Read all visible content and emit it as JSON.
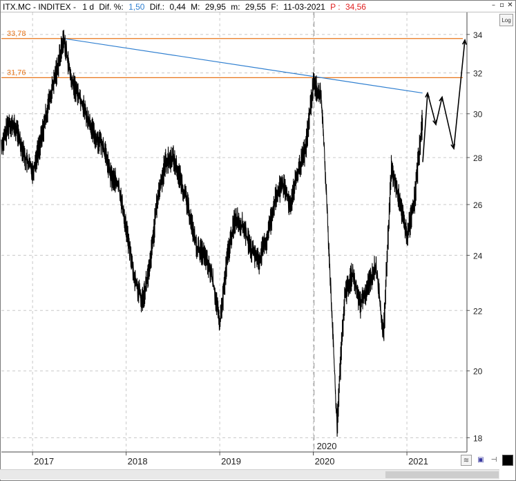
{
  "header": {
    "symbol": "ITX.MC - INDITEX -",
    "interval": "1 d",
    "dif_pct_label": "Dif. %:",
    "dif_pct_value": "1,50",
    "dif_label": "Dif.:",
    "dif_value": "0,44",
    "max_label": "M:",
    "max_value": "29,95",
    "min_label": "m:",
    "min_value": "29,55",
    "date_label": "F:",
    "date_value": "11-03-2021",
    "price_label": "P :",
    "price_value": "34,56"
  },
  "controls": {
    "log_label": "Log",
    "minimize_icon": "minimize-icon",
    "restore_icon": "restore-icon",
    "close_icon": "close-icon"
  },
  "colors": {
    "price_line": "#000000",
    "horizontal_levels": "#e8751a",
    "trend_line": "#2f7fd0",
    "grid": "#c8c8c8",
    "dif_value": "#2f7fd0",
    "price_value": "#e02020"
  },
  "chart_data": {
    "type": "line",
    "scale": "log",
    "grid": true,
    "ylim": [
      17.6,
      35.2
    ],
    "y_ticks": [
      18,
      20,
      22,
      24,
      26,
      28,
      30,
      32,
      34
    ],
    "x_ticks": [
      "2017",
      "2018",
      "2019",
      "2020",
      "2020",
      "2021"
    ],
    "x_period_label": "2020",
    "horizontal_levels": [
      {
        "value": 33.78,
        "label": "33,78"
      },
      {
        "value": 31.76,
        "label": "31,76"
      }
    ],
    "trendline": {
      "from": [
        "2017-05",
        33.78
      ],
      "to": [
        "2021-03",
        31.0
      ]
    },
    "series": [
      {
        "points": [
          [
            "2016-09",
            28.5
          ],
          [
            "2016-10",
            29.6
          ],
          [
            "2016-11",
            29.2
          ],
          [
            "2016-12",
            28.0
          ],
          [
            "2017-01",
            27.4
          ],
          [
            "2017-02",
            28.7
          ],
          [
            "2017-03",
            30.4
          ],
          [
            "2017-04",
            32.0
          ],
          [
            "2017-05",
            33.78
          ],
          [
            "2017-06",
            31.5
          ],
          [
            "2017-07",
            30.9
          ],
          [
            "2017-08",
            29.8
          ],
          [
            "2017-09",
            28.9
          ],
          [
            "2017-10",
            28.6
          ],
          [
            "2017-11",
            27.2
          ],
          [
            "2017-12",
            26.8
          ],
          [
            "2018-01",
            25.0
          ],
          [
            "2018-02",
            23.2
          ],
          [
            "2018-03",
            22.3
          ],
          [
            "2018-04",
            23.5
          ],
          [
            "2018-05",
            26.2
          ],
          [
            "2018-06",
            27.8
          ],
          [
            "2018-07",
            28.0
          ],
          [
            "2018-08",
            27.0
          ],
          [
            "2018-09",
            25.8
          ],
          [
            "2018-10",
            24.3
          ],
          [
            "2018-11",
            24.0
          ],
          [
            "2018-12",
            23.2
          ],
          [
            "2019-01",
            21.5
          ],
          [
            "2019-02",
            24.0
          ],
          [
            "2019-03",
            25.5
          ],
          [
            "2019-04",
            25.1
          ],
          [
            "2019-05",
            24.2
          ],
          [
            "2019-06",
            23.8
          ],
          [
            "2019-07",
            24.6
          ],
          [
            "2019-08",
            26.1
          ],
          [
            "2019-09",
            26.9
          ],
          [
            "2019-10",
            26.0
          ],
          [
            "2019-11",
            27.3
          ],
          [
            "2019-12",
            28.4
          ],
          [
            "2020-01",
            31.5
          ],
          [
            "2020-02",
            30.8
          ],
          [
            "2020-03",
            24.0
          ],
          [
            "2020-04",
            18.3
          ],
          [
            "2020-05",
            22.5
          ],
          [
            "2020-06",
            23.3
          ],
          [
            "2020-07",
            22.2
          ],
          [
            "2020-08",
            22.9
          ],
          [
            "2020-09",
            23.6
          ],
          [
            "2020-10",
            21.1
          ],
          [
            "2020-11",
            27.5
          ],
          [
            "2020-12",
            26.2
          ],
          [
            "2021-01",
            24.7
          ],
          [
            "2021-02",
            26.3
          ],
          [
            "2021-03",
            29.8
          ]
        ]
      }
    ],
    "projection": [
      [
        "2021-03",
        27.8
      ],
      [
        "2021-04",
        31.0
      ],
      [
        "2021-05",
        29.5
      ],
      [
        "2021-05",
        30.8
      ],
      [
        "2021-06",
        28.4
      ],
      [
        "2021-07",
        33.7
      ]
    ]
  }
}
